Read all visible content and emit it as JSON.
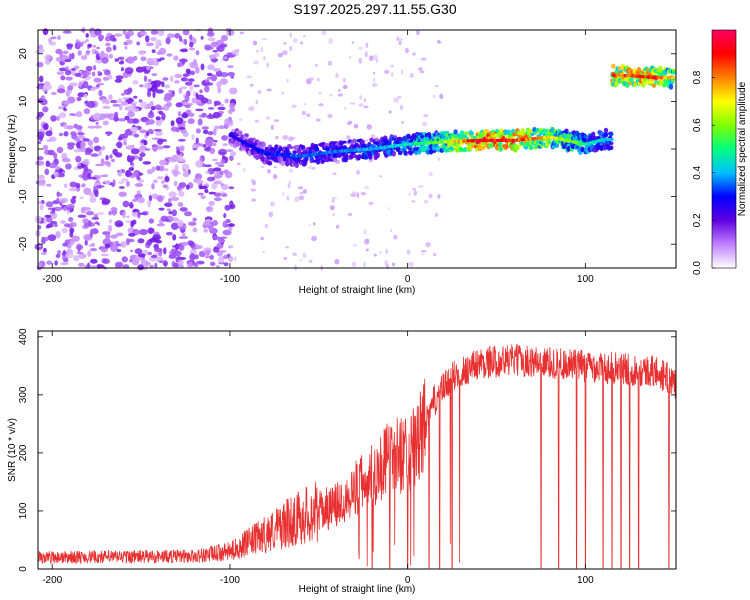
{
  "title": "S197.2025.297.11.55.G30",
  "chart_data": [
    {
      "type": "heatmap",
      "title": "S197.2025.297.11.55.G30",
      "xlabel": "Height of straight line (km)",
      "ylabel": "Frequency (Hz)",
      "xlim": [
        -208,
        151
      ],
      "ylim": [
        -25,
        25
      ],
      "xticks": [
        -200,
        -100,
        0,
        100
      ],
      "yticks": [
        -20,
        -10,
        0,
        10,
        20
      ],
      "colorbar": {
        "label": "Normalized spectral amplitude",
        "range": [
          0,
          1
        ],
        "ticks": [
          "0.0",
          "0.2",
          "0.4",
          "0.6",
          "0.8"
        ],
        "colors": [
          "#ffffff",
          "#c080ff",
          "#6000e0",
          "#0000ff",
          "#00c0ff",
          "#00ff80",
          "#80ff00",
          "#ffff00",
          "#ff8000",
          "#ff0000",
          "#ff0060"
        ]
      },
      "ridge": [
        {
          "x": -100,
          "f": 3,
          "a": 0.25
        },
        {
          "x": -80,
          "f": -1,
          "a": 0.3
        },
        {
          "x": -60,
          "f": -1.5,
          "a": 0.35
        },
        {
          "x": -40,
          "f": -0.5,
          "a": 0.35
        },
        {
          "x": -20,
          "f": 0,
          "a": 0.4
        },
        {
          "x": 0,
          "f": 1,
          "a": 0.45
        },
        {
          "x": 20,
          "f": 1.5,
          "a": 0.6
        },
        {
          "x": 40,
          "f": 1.8,
          "a": 0.95
        },
        {
          "x": 60,
          "f": 1.8,
          "a": 0.9
        },
        {
          "x": 80,
          "f": 2.5,
          "a": 0.7
        },
        {
          "x": 100,
          "f": 1,
          "a": 0.5
        },
        {
          "x": 110,
          "f": 2,
          "a": 0.4
        },
        {
          "x": 120,
          "f": 15.5,
          "a": 0.85
        },
        {
          "x": 140,
          "f": 15,
          "a": 0.85
        },
        {
          "x": 150,
          "f": 15,
          "a": 0.7
        }
      ]
    },
    {
      "type": "line",
      "xlabel": "Height of straight line (km)",
      "ylabel": "SNR (10 * v/v)",
      "xlim": [
        -208,
        151
      ],
      "ylim": [
        0,
        410
      ],
      "xticks": [
        -200,
        -100,
        0,
        100
      ],
      "yticks": [
        0,
        100,
        200,
        300,
        400
      ],
      "color": "#e83030",
      "envelope": [
        {
          "x": -208,
          "y": 20
        },
        {
          "x": -120,
          "y": 22
        },
        {
          "x": -100,
          "y": 30
        },
        {
          "x": -80,
          "y": 60
        },
        {
          "x": -60,
          "y": 90
        },
        {
          "x": -40,
          "y": 110
        },
        {
          "x": -25,
          "y": 150
        },
        {
          "x": -10,
          "y": 190
        },
        {
          "x": 5,
          "y": 210
        },
        {
          "x": 15,
          "y": 290
        },
        {
          "x": 25,
          "y": 330
        },
        {
          "x": 40,
          "y": 355
        },
        {
          "x": 60,
          "y": 360
        },
        {
          "x": 80,
          "y": 355
        },
        {
          "x": 100,
          "y": 350
        },
        {
          "x": 120,
          "y": 345
        },
        {
          "x": 140,
          "y": 340
        },
        {
          "x": 151,
          "y": 320
        }
      ],
      "dropouts": [
        -20,
        -10,
        0,
        12,
        18,
        25,
        75,
        85,
        95,
        100,
        110,
        115,
        120,
        125,
        130,
        147
      ]
    }
  ]
}
